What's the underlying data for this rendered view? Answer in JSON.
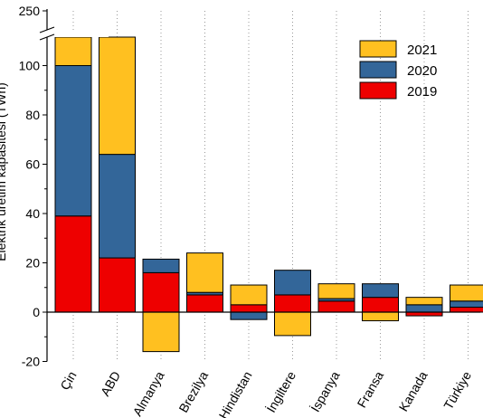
{
  "chart_data": {
    "type": "bar",
    "stacked": true,
    "categories": [
      "Çin",
      "ABD",
      "Almanya",
      "Brezilya",
      "Hindistan",
      "İngiltere",
      "İspanya",
      "Fransa",
      "Kanada",
      "Türkiye"
    ],
    "series": [
      {
        "name": "2019",
        "color": "#ee0000",
        "values": [
          39,
          22,
          16,
          7,
          3,
          7,
          4.5,
          6,
          -1.5,
          2
        ]
      },
      {
        "name": "2020",
        "color": "#336699",
        "values": [
          61,
          42,
          5.5,
          1,
          -3,
          10,
          1,
          5.5,
          3,
          2.5
        ]
      },
      {
        "name": "2021",
        "color": "#ffc020",
        "values": [
          145,
          43,
          -16,
          16,
          8,
          -9.5,
          6,
          -3.5,
          3,
          6.5
        ]
      }
    ],
    "xlabel": "",
    "ylabel": "Elektrik üretim kapasitesi (TWh)",
    "y_ticks_lower": [
      -20,
      0,
      20,
      40,
      60,
      80,
      100
    ],
    "y_ticks_upper": [
      250
    ],
    "ylim": [
      -20,
      250
    ],
    "axis_break": [
      105,
      245
    ],
    "legend": {
      "position": "top-right",
      "entries": [
        "2021",
        "2020",
        "2019"
      ]
    },
    "grid": "vertical dotted lines at categories"
  }
}
